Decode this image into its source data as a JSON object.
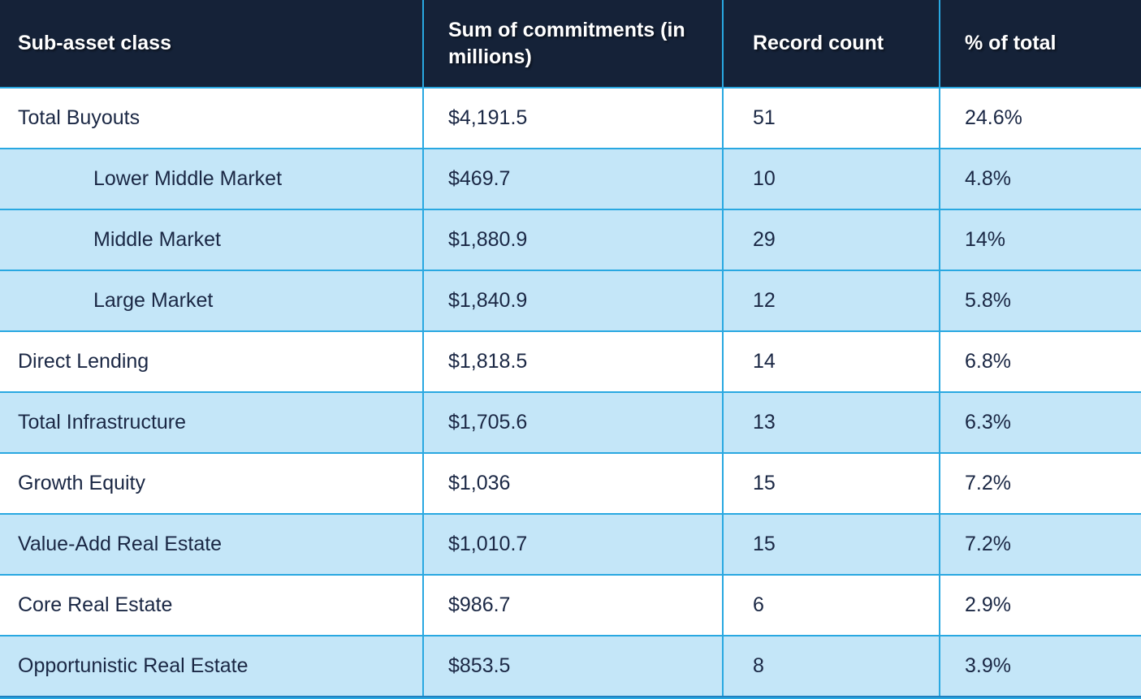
{
  "chart_data": {
    "type": "table",
    "columns": [
      "Sub-asset class",
      "Sum of commitments (in millions)",
      "Record count",
      "% of total"
    ],
    "rows": [
      {
        "sub_asset_class": "Total Buyouts",
        "sum_of_commitments": "$4,191.5",
        "record_count": "51",
        "pct_of_total": "24.6%",
        "indent": false,
        "shade": "white"
      },
      {
        "sub_asset_class": "Lower Middle Market",
        "sum_of_commitments": "$469.7",
        "record_count": "10",
        "pct_of_total": "4.8%",
        "indent": true,
        "shade": "blue"
      },
      {
        "sub_asset_class": "Middle Market",
        "sum_of_commitments": "$1,880.9",
        "record_count": "29",
        "pct_of_total": "14%",
        "indent": true,
        "shade": "blue"
      },
      {
        "sub_asset_class": "Large Market",
        "sum_of_commitments": "$1,840.9",
        "record_count": "12",
        "pct_of_total": "5.8%",
        "indent": true,
        "shade": "blue"
      },
      {
        "sub_asset_class": "Direct Lending",
        "sum_of_commitments": "$1,818.5",
        "record_count": "14",
        "pct_of_total": "6.8%",
        "indent": false,
        "shade": "white"
      },
      {
        "sub_asset_class": "Total Infrastructure",
        "sum_of_commitments": "$1,705.6",
        "record_count": "13",
        "pct_of_total": "6.3%",
        "indent": false,
        "shade": "blue"
      },
      {
        "sub_asset_class": "Growth Equity",
        "sum_of_commitments": "$1,036",
        "record_count": "15",
        "pct_of_total": "7.2%",
        "indent": false,
        "shade": "white"
      },
      {
        "sub_asset_class": "Value-Add Real Estate",
        "sum_of_commitments": "$1,010.7",
        "record_count": "15",
        "pct_of_total": "7.2%",
        "indent": false,
        "shade": "blue"
      },
      {
        "sub_asset_class": "Core Real Estate",
        "sum_of_commitments": "$986.7",
        "record_count": "6",
        "pct_of_total": "2.9%",
        "indent": false,
        "shade": "white"
      },
      {
        "sub_asset_class": "Opportunistic Real Estate",
        "sum_of_commitments": "$853.5",
        "record_count": "8",
        "pct_of_total": "3.9%",
        "indent": false,
        "shade": "blue"
      }
    ]
  },
  "colors": {
    "header_bg": "#152238",
    "header_text": "#ffffff",
    "row_blue": "#c4e6f8",
    "row_white": "#ffffff",
    "border_blue": "#29a8e1",
    "border_bottom_dark": "#1f80c0",
    "text_dark": "#1a2744"
  }
}
